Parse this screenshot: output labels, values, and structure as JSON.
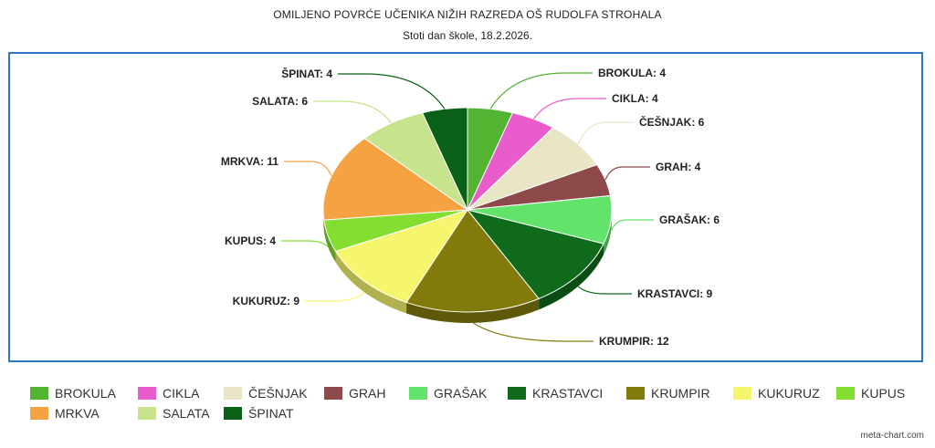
{
  "title": "OMILJENO POVRĆE UČENIKA NIŽIH RAZREDA OŠ RUDOLFA STROHALA",
  "subtitle": "Stoti dan škole, 18.2.2026.",
  "credit": "meta-chart.com",
  "chart_data": {
    "type": "pie",
    "title": "OMILJENO POVRĆE UČENIKA NIŽIH RAZREDA OŠ RUDOLFA STROHALA",
    "subtitle": "Stoti dan škole, 18.2.2026.",
    "style": "3d",
    "legend_position": "bottom",
    "slices": [
      {
        "label": "BROKULA",
        "value": 4,
        "color": "#52b431",
        "data_label": "BROKULA: 4"
      },
      {
        "label": "CIKLA",
        "value": 4,
        "color": "#e85ccb",
        "data_label": "CIKLA: 4"
      },
      {
        "label": "ČEŠNJAK",
        "value": 6,
        "color": "#e9e6c6",
        "data_label": "ČEŠNJAK: 6"
      },
      {
        "label": "GRAH",
        "value": 4,
        "color": "#8e4a4a",
        "data_label": "GRAH: 4"
      },
      {
        "label": "GRAŠAK",
        "value": 6,
        "color": "#62e36a",
        "data_label": "GRAŠAK: 6"
      },
      {
        "label": "KRASTAVCI",
        "value": 9,
        "color": "#0f6a1c",
        "data_label": "KRASTAVCI: 9"
      },
      {
        "label": "KRUMPIR",
        "value": 12,
        "color": "#837a0c",
        "data_label": "KRUMPIR: 12"
      },
      {
        "label": "KUKURUZ",
        "value": 9,
        "color": "#f6f66e",
        "data_label": "KUKURUZ: 9"
      },
      {
        "label": "KUPUS",
        "value": 4,
        "color": "#84dd31",
        "data_label": "KUPUS: 4"
      },
      {
        "label": "MRKVA",
        "value": 11,
        "color": "#f4a242",
        "data_label": "MRKVA: 11"
      },
      {
        "label": "SALATA",
        "value": 6,
        "color": "#c7e48c",
        "data_label": "SALATA: 6"
      },
      {
        "label": "ŠPINAT",
        "value": 4,
        "color": "#096016",
        "data_label": "ŠPINAT: 4"
      }
    ]
  }
}
